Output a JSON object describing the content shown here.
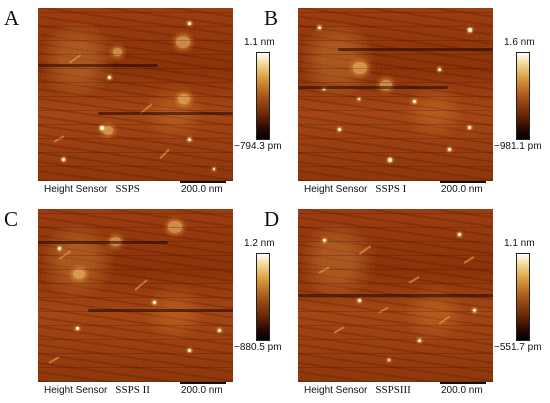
{
  "panels": [
    {
      "letter": "A",
      "label": "Height Sensor",
      "sample": "SSPS",
      "scale": "200.0 nm",
      "max": "1.1 nm",
      "min": "−794.3 pm"
    },
    {
      "letter": "B",
      "label": "Height Sensor",
      "sample": "SSPS I",
      "scale": "200.0 nm",
      "max": "1.6 nm",
      "min": "−981.1 pm"
    },
    {
      "letter": "C",
      "label": "Height Sensor",
      "sample": "SSPS II",
      "scale": "200.0 nm",
      "max": "1.2 nm",
      "min": "−880.5 pm"
    },
    {
      "letter": "D",
      "label": "Height Sensor",
      "sample": "SSPSIII",
      "scale": "200.0 nm",
      "max": "1.1 nm",
      "min": "−551.7 pm"
    }
  ],
  "colors": {
    "surface": "#9b3d10",
    "highlight": "#fff6d8",
    "colormap_top": "#ffffff",
    "colormap_bottom": "#000000"
  }
}
